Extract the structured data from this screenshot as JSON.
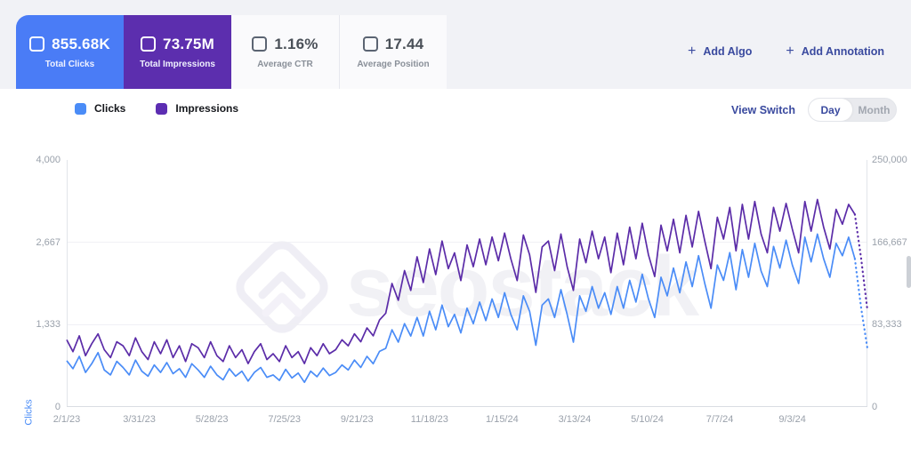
{
  "header": {
    "metrics": [
      {
        "id": "total-clicks",
        "value": "855.68K",
        "label": "Total Clicks",
        "selected": true,
        "color": "#4a7cf6"
      },
      {
        "id": "total-impressions",
        "value": "73.75M",
        "label": "Total Impressions",
        "selected": true,
        "color": "#5c2eae"
      },
      {
        "id": "average-ctr",
        "value": "1.16%",
        "label": "Average CTR",
        "selected": false,
        "color": "#fafafc"
      },
      {
        "id": "average-position",
        "value": "17.44",
        "label": "Average Position",
        "selected": false,
        "color": "#fafafc"
      }
    ],
    "add_algo_label": "Add Algo",
    "add_annotation_label": "Add Annotation"
  },
  "toolbar": {
    "legend": [
      {
        "label": "Clicks",
        "color": "#4a8cf7"
      },
      {
        "label": "Impressions",
        "color": "#5c2db2"
      }
    ],
    "view_switch_label": "View Switch",
    "toggle": {
      "options": [
        "Day",
        "Month"
      ],
      "active": "Day"
    }
  },
  "watermark": {
    "text": "seostack"
  },
  "chart_data": {
    "type": "line",
    "title": "",
    "grid": "horizontal-only",
    "legend_position": "top-left",
    "x_axis": {
      "labels": [
        "2/1/23",
        "3/31/23",
        "5/28/23",
        "7/25/23",
        "9/21/23",
        "11/18/23",
        "1/15/24",
        "3/13/24",
        "5/10/24",
        "7/7/24",
        "9/3/24"
      ],
      "interval_points": 11.6
    },
    "y_axis_left": {
      "title": "Clicks",
      "ticks": [
        "4,000",
        "2,667",
        "1,333",
        "0"
      ],
      "max": 4000,
      "color": "#4a8cf7"
    },
    "y_axis_right": {
      "title": "",
      "ticks": [
        "250,000",
        "166,667",
        "83,333",
        "0"
      ],
      "max": 250000
    },
    "grid_values_left": [
      2667,
      1333
    ],
    "series": [
      {
        "name": "Clicks",
        "color": "#4a8cf7",
        "axis": "left",
        "values": [
          750,
          620,
          820,
          560,
          700,
          880,
          600,
          520,
          740,
          640,
          520,
          760,
          580,
          500,
          680,
          560,
          720,
          540,
          620,
          480,
          700,
          600,
          480,
          660,
          520,
          440,
          620,
          500,
          580,
          420,
          560,
          640,
          480,
          520,
          430,
          610,
          470,
          550,
          400,
          580,
          490,
          630,
          510,
          560,
          680,
          600,
          760,
          640,
          820,
          700,
          900,
          950,
          1250,
          1050,
          1350,
          1150,
          1450,
          1150,
          1550,
          1250,
          1650,
          1300,
          1500,
          1200,
          1600,
          1350,
          1700,
          1400,
          1750,
          1450,
          1850,
          1500,
          1250,
          1800,
          1550,
          1000,
          1650,
          1750,
          1450,
          1900,
          1500,
          1050,
          1800,
          1550,
          1950,
          1600,
          1850,
          1500,
          1950,
          1600,
          2050,
          1700,
          2150,
          1750,
          1450,
          2100,
          1800,
          2250,
          1850,
          2350,
          1950,
          2450,
          2000,
          1600,
          2300,
          2050,
          2500,
          1900,
          2550,
          2100,
          2650,
          2200,
          1950,
          2600,
          2250,
          2700,
          2300,
          2000,
          2750,
          2350,
          2800,
          2400,
          2100,
          2650,
          2450,
          2750,
          2400
        ],
        "tail": [
          1600,
          950
        ]
      },
      {
        "name": "Impressions",
        "color": "#5b2ca8",
        "axis": "right",
        "values": [
          68000,
          56000,
          72000,
          52000,
          64000,
          74000,
          58000,
          50000,
          66000,
          62000,
          52000,
          70000,
          56000,
          48000,
          66000,
          54000,
          68000,
          50000,
          62000,
          46000,
          64000,
          60000,
          50000,
          66000,
          52000,
          46000,
          62000,
          50000,
          58000,
          44000,
          56000,
          64000,
          48000,
          54000,
          46000,
          62000,
          50000,
          56000,
          44000,
          60000,
          52000,
          64000,
          54000,
          58000,
          68000,
          62000,
          74000,
          66000,
          80000,
          72000,
          88000,
          95000,
          125000,
          108000,
          138000,
          118000,
          152000,
          126000,
          160000,
          134000,
          168000,
          140000,
          156000,
          128000,
          164000,
          142000,
          170000,
          144000,
          172000,
          148000,
          176000,
          150000,
          128000,
          174000,
          154000,
          116000,
          162000,
          168000,
          138000,
          175000,
          142000,
          118000,
          170000,
          146000,
          178000,
          150000,
          172000,
          136000,
          176000,
          144000,
          182000,
          150000,
          186000,
          154000,
          132000,
          184000,
          158000,
          190000,
          156000,
          194000,
          162000,
          198000,
          168000,
          140000,
          192000,
          170000,
          202000,
          158000,
          205000,
          170000,
          208000,
          175000,
          156000,
          202000,
          178000,
          206000,
          180000,
          156000,
          208000,
          178000,
          210000,
          182000,
          160000,
          200000,
          185000,
          205000,
          195000
        ],
        "tail": [
          150000,
          98000
        ]
      }
    ]
  }
}
